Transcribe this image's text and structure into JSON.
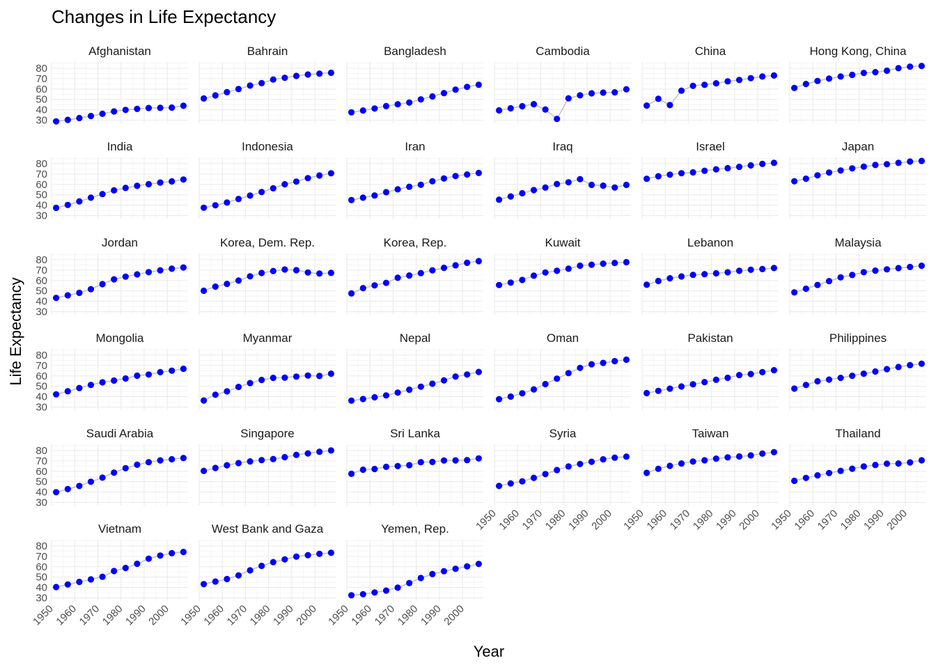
{
  "chart_data": {
    "type": "line",
    "title": "Changes in Life Expectancy",
    "xlabel": "Year",
    "ylabel": "Life Expectancy",
    "xlim": [
      1950,
      2009
    ],
    "ylim": [
      27,
      86
    ],
    "x_ticks": [
      "1950",
      "1960",
      "1970",
      "1980",
      "1990",
      "2000"
    ],
    "y_ticks": [
      "30",
      "40",
      "50",
      "60",
      "70",
      "80"
    ],
    "x": [
      1952,
      1957,
      1962,
      1967,
      1972,
      1977,
      1982,
      1987,
      1992,
      1997,
      2002,
      2007
    ],
    "colors": {
      "point": "#0000ff",
      "line": "#bdbdbd",
      "grid": "#ebebeb"
    },
    "grid": true,
    "ncol": 6,
    "panels": [
      {
        "name": "Afghanistan",
        "values": [
          28.8,
          30.3,
          32.0,
          34.0,
          36.1,
          38.4,
          39.9,
          40.8,
          41.7,
          41.8,
          42.1,
          43.8
        ]
      },
      {
        "name": "Bahrain",
        "values": [
          50.9,
          53.8,
          56.9,
          59.9,
          63.3,
          65.6,
          69.1,
          70.8,
          72.6,
          73.9,
          74.8,
          75.6
        ]
      },
      {
        "name": "Bangladesh",
        "values": [
          37.5,
          39.3,
          41.2,
          43.5,
          45.3,
          46.9,
          50.0,
          52.8,
          56.0,
          59.4,
          62.0,
          64.1
        ]
      },
      {
        "name": "Cambodia",
        "values": [
          39.4,
          41.4,
          43.4,
          45.4,
          40.3,
          31.2,
          51.0,
          53.9,
          55.8,
          56.5,
          56.8,
          59.7
        ]
      },
      {
        "name": "China",
        "values": [
          44.0,
          50.5,
          44.5,
          58.4,
          63.1,
          64.0,
          65.5,
          67.3,
          68.7,
          70.4,
          72.0,
          73.0
        ]
      },
      {
        "name": "Hong Kong, China",
        "values": [
          61.0,
          64.8,
          67.7,
          70.0,
          72.0,
          73.6,
          75.5,
          76.2,
          77.6,
          80.0,
          81.5,
          82.2
        ]
      },
      {
        "name": "India",
        "values": [
          37.4,
          40.2,
          43.6,
          47.2,
          50.7,
          54.2,
          56.6,
          58.6,
          60.2,
          61.8,
          62.9,
          64.7
        ]
      },
      {
        "name": "Indonesia",
        "values": [
          37.5,
          39.9,
          42.5,
          46.0,
          49.2,
          52.7,
          56.2,
          60.1,
          62.7,
          66.0,
          68.6,
          70.7
        ]
      },
      {
        "name": "Iran",
        "values": [
          44.9,
          47.2,
          49.3,
          52.5,
          55.2,
          57.7,
          59.6,
          63.0,
          65.7,
          68.0,
          69.5,
          71.0
        ]
      },
      {
        "name": "Iraq",
        "values": [
          45.3,
          48.4,
          51.5,
          54.5,
          56.9,
          60.4,
          62.0,
          65.0,
          59.5,
          58.8,
          57.0,
          59.5
        ]
      },
      {
        "name": "Israel",
        "values": [
          65.4,
          67.8,
          69.4,
          70.8,
          71.6,
          73.1,
          74.5,
          75.6,
          76.9,
          78.3,
          79.7,
          80.7
        ]
      },
      {
        "name": "Japan",
        "values": [
          63.0,
          65.5,
          68.7,
          71.4,
          73.4,
          75.4,
          77.1,
          78.7,
          79.4,
          80.7,
          82.0,
          82.6
        ]
      },
      {
        "name": "Jordan",
        "values": [
          43.2,
          45.7,
          48.1,
          51.6,
          56.5,
          61.1,
          63.7,
          65.9,
          68.0,
          69.8,
          71.3,
          72.5
        ]
      },
      {
        "name": "Korea, Dem. Rep.",
        "values": [
          50.1,
          54.1,
          56.7,
          59.9,
          64.0,
          67.2,
          69.1,
          70.6,
          69.9,
          67.7,
          66.7,
          67.3
        ]
      },
      {
        "name": "Korea, Rep.",
        "values": [
          47.5,
          52.7,
          55.3,
          57.7,
          62.6,
          64.8,
          67.1,
          69.8,
          72.2,
          74.6,
          77.0,
          78.6
        ]
      },
      {
        "name": "Kuwait",
        "values": [
          55.6,
          58.0,
          60.5,
          64.6,
          67.7,
          69.3,
          71.3,
          74.2,
          75.2,
          76.2,
          76.9,
          77.6
        ]
      },
      {
        "name": "Lebanon",
        "values": [
          55.9,
          59.5,
          62.1,
          63.9,
          65.4,
          66.1,
          66.9,
          67.9,
          69.3,
          70.3,
          71.0,
          72.0
        ]
      },
      {
        "name": "Malaysia",
        "values": [
          48.5,
          52.1,
          55.7,
          59.4,
          63.0,
          65.3,
          68.0,
          69.5,
          70.7,
          71.9,
          73.0,
          74.2
        ]
      },
      {
        "name": "Mongolia",
        "values": [
          42.2,
          45.2,
          48.3,
          51.3,
          53.8,
          55.5,
          57.5,
          60.2,
          61.3,
          63.6,
          65.0,
          66.8
        ]
      },
      {
        "name": "Myanmar",
        "values": [
          36.3,
          41.9,
          45.1,
          49.4,
          53.1,
          56.1,
          58.1,
          58.3,
          59.3,
          60.3,
          59.9,
          62.1
        ]
      },
      {
        "name": "Nepal",
        "values": [
          36.2,
          37.7,
          39.4,
          41.2,
          43.9,
          46.7,
          49.6,
          52.5,
          55.7,
          59.4,
          61.3,
          63.8
        ]
      },
      {
        "name": "Oman",
        "values": [
          37.6,
          40.1,
          43.2,
          47.0,
          52.1,
          57.4,
          62.7,
          67.7,
          71.2,
          72.5,
          74.2,
          75.6
        ]
      },
      {
        "name": "Pakistan",
        "values": [
          43.4,
          45.6,
          47.7,
          49.8,
          51.9,
          54.0,
          56.2,
          58.2,
          60.8,
          61.8,
          63.6,
          65.5
        ]
      },
      {
        "name": "Philippines",
        "values": [
          47.8,
          51.3,
          54.8,
          56.4,
          58.1,
          60.1,
          62.1,
          64.2,
          66.5,
          68.6,
          70.3,
          71.7
        ]
      },
      {
        "name": "Saudi Arabia",
        "values": [
          39.9,
          42.9,
          45.9,
          49.9,
          53.9,
          58.7,
          63.0,
          66.3,
          68.8,
          70.5,
          71.6,
          72.8
        ]
      },
      {
        "name": "Singapore",
        "values": [
          60.4,
          63.2,
          65.8,
          67.9,
          69.5,
          70.8,
          71.8,
          73.6,
          75.8,
          77.2,
          78.8,
          80.0
        ]
      },
      {
        "name": "Sri Lanka",
        "values": [
          57.6,
          61.5,
          62.2,
          64.3,
          65.0,
          65.9,
          68.8,
          69.0,
          70.4,
          70.5,
          70.8,
          72.4
        ]
      },
      {
        "name": "Syria",
        "values": [
          45.9,
          48.3,
          50.3,
          53.7,
          57.3,
          61.2,
          64.6,
          67.0,
          69.2,
          71.5,
          73.1,
          74.1
        ]
      },
      {
        "name": "Taiwan",
        "values": [
          58.5,
          62.4,
          65.2,
          67.5,
          69.4,
          70.6,
          72.2,
          73.4,
          74.3,
          75.3,
          77.0,
          78.4
        ]
      },
      {
        "name": "Thailand",
        "values": [
          50.8,
          53.6,
          56.1,
          58.3,
          60.4,
          62.5,
          64.6,
          66.1,
          67.3,
          67.5,
          68.6,
          70.6
        ]
      },
      {
        "name": "Vietnam",
        "values": [
          40.4,
          42.9,
          45.4,
          47.8,
          50.3,
          55.8,
          58.8,
          62.8,
          67.7,
          70.7,
          73.0,
          74.2
        ]
      },
      {
        "name": "West Bank and Gaza",
        "values": [
          43.2,
          45.7,
          48.1,
          51.6,
          56.5,
          60.8,
          64.4,
          67.0,
          69.7,
          71.1,
          72.4,
          73.4
        ]
      },
      {
        "name": "Yemen, Rep.",
        "values": [
          32.5,
          33.5,
          35.2,
          37.0,
          39.8,
          44.2,
          49.1,
          52.9,
          55.6,
          58.0,
          60.3,
          62.7
        ]
      }
    ]
  }
}
